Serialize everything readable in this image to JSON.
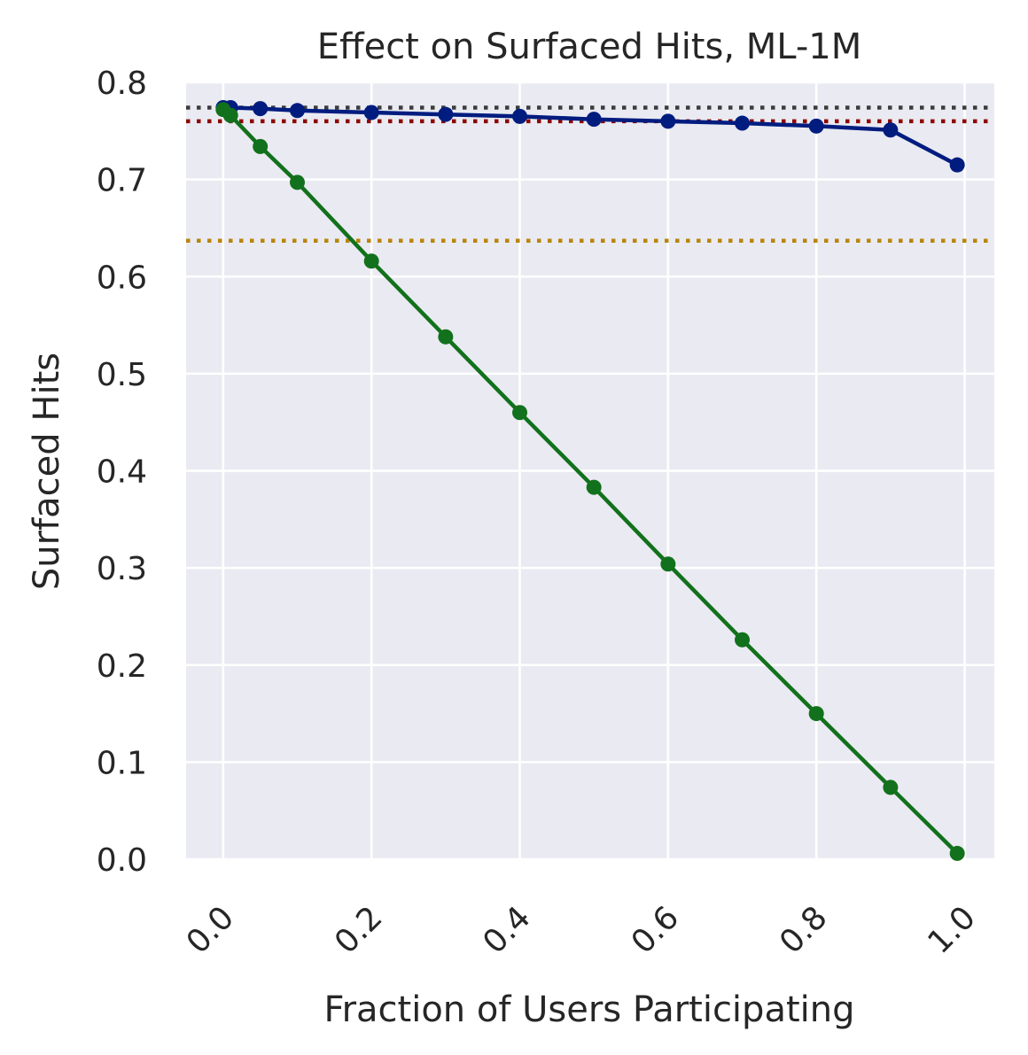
{
  "chart_data": {
    "type": "line",
    "title": "Effect on Surfaced Hits, ML-1M",
    "xlabel": "Fraction of Users Participating",
    "ylabel": "Surfaced Hits",
    "xlim": [
      -0.05,
      1.04
    ],
    "ylim": [
      0.0,
      0.8
    ],
    "xticks": [
      0.0,
      0.2,
      0.4,
      0.6,
      0.8,
      1.0
    ],
    "xtick_labels": [
      "0.0",
      "0.2",
      "0.4",
      "0.6",
      "0.8",
      "1.0"
    ],
    "yticks": [
      0.0,
      0.1,
      0.2,
      0.3,
      0.4,
      0.5,
      0.6,
      0.7,
      0.8
    ],
    "ytick_labels": [
      "0.0",
      "0.1",
      "0.2",
      "0.3",
      "0.4",
      "0.5",
      "0.6",
      "0.7",
      "0.8"
    ],
    "grid": true,
    "legend": null,
    "background": "#eaeaf2",
    "series": [
      {
        "color": "#001c7f",
        "x": [
          0.0,
          0.01,
          0.05,
          0.1,
          0.2,
          0.3,
          0.4,
          0.5,
          0.6,
          0.7,
          0.8,
          0.9,
          0.99
        ],
        "y": [
          0.774,
          0.774,
          0.773,
          0.771,
          0.769,
          0.767,
          0.765,
          0.762,
          0.76,
          0.758,
          0.755,
          0.751,
          0.715
        ]
      },
      {
        "color": "#12711c",
        "x": [
          0.0,
          0.01,
          0.05,
          0.1,
          0.2,
          0.3,
          0.4,
          0.5,
          0.6,
          0.7,
          0.8,
          0.9,
          0.99
        ],
        "y": [
          0.772,
          0.766,
          0.734,
          0.697,
          0.616,
          0.538,
          0.46,
          0.383,
          0.304,
          0.226,
          0.15,
          0.074,
          0.006
        ]
      }
    ],
    "reference_lines": [
      {
        "y": 0.774,
        "color": "#3c3c3c",
        "style": "dotted"
      },
      {
        "y": 0.76,
        "color": "#8c0800",
        "style": "dotted"
      },
      {
        "y": 0.637,
        "color": "#b8850a",
        "style": "dotted"
      }
    ]
  }
}
